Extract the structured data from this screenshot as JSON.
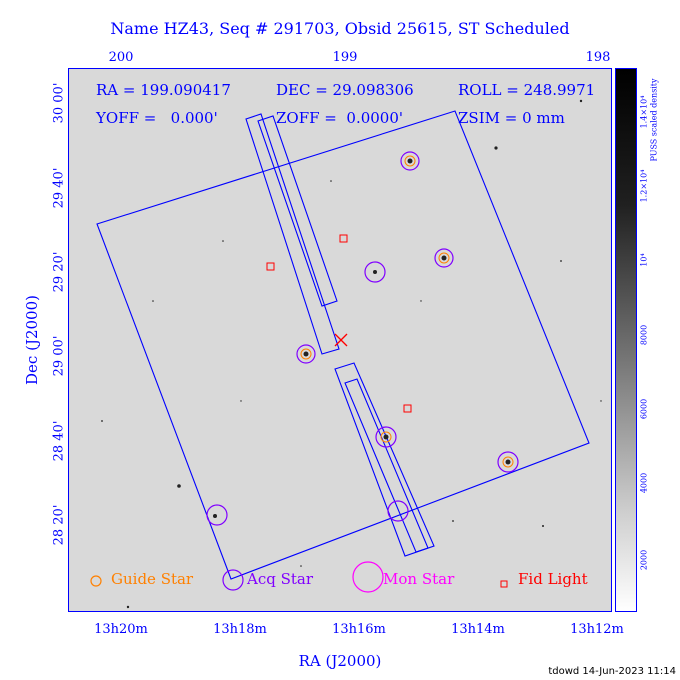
{
  "title": "Name HZ43, Seq # 291703, Obsid 25615, ST Scheduled",
  "axes": {
    "xlabel": "RA (J2000)",
    "ylabel": "Dec (J2000)",
    "top_ticks": [
      "200",
      "199",
      "198"
    ],
    "bottom_ticks": [
      "13h20m",
      "13h18m",
      "13h16m",
      "13h14m",
      "13h12m"
    ],
    "left_ticks": [
      "30 00'",
      "29 40'",
      "29 20'",
      "29 00'",
      "28 40'",
      "28 20'"
    ]
  },
  "info": {
    "ra": "RA = 199.090417",
    "dec": "DEC = 29.098306",
    "roll": "ROLL = 248.9971",
    "yoff": "YOFF =   0.000'",
    "zoff": "ZOFF =  0.0000'",
    "zsim": "ZSIM = 0 mm"
  },
  "legend": {
    "guide": "Guide Star",
    "acq": "Acq Star",
    "mon": "Mon Star",
    "fid": "Fid Light"
  },
  "colors": {
    "axis": "#0000ff",
    "guide": "#ff8000",
    "acq": "#8000ff",
    "mon": "#ff00ff",
    "fid": "#ff0000"
  },
  "colorbar": {
    "title": "PUSS scaled density",
    "ticks": [
      "2000",
      "4000",
      "6000",
      "8000",
      "10⁴",
      "1.2×10⁴",
      "1.4×10⁴"
    ]
  },
  "footer": "tdowd 14-Jun-2023 11:14"
}
